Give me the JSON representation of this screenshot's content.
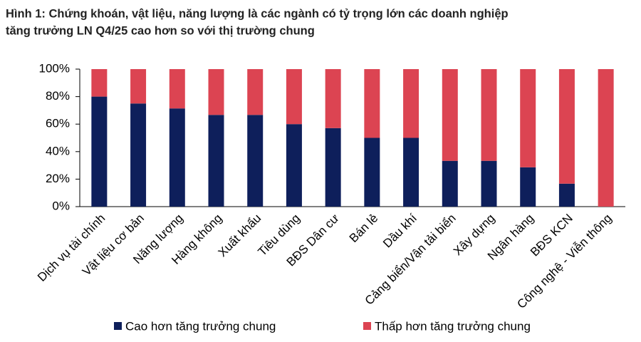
{
  "chart_data": {
    "type": "stacked_bar",
    "title": [
      "Hình 1: Chứng khoán, vật liệu, năng lượng là các ngành có tỷ trọng lớn các doanh nghiệp",
      "tăng trưởng LN Q4/25 cao hơn so với thị trường chung"
    ],
    "categories": [
      "Dịch vụ tài chính",
      "Vật liệu cơ bản",
      "Năng lượng",
      "Hàng không",
      "Xuất khẩu",
      "Tiêu dùng",
      "BĐS Dân cư",
      "Bán lẻ",
      "Dầu khí",
      "Cảng biển/Vận tải biển",
      "Xây dựng",
      "Ngân hàng",
      "BĐS KCN",
      "Công nghệ - Viễn thông"
    ],
    "series": [
      {
        "name": "Cao hơn tăng trưởng chung",
        "color": "#0e1f5b",
        "values": [
          80,
          75,
          71.4,
          66.7,
          66.7,
          60,
          57.1,
          50,
          50,
          33.3,
          33.3,
          28.6,
          16.7,
          0
        ]
      },
      {
        "name": "Thấp hơn tăng trưởng chung",
        "color": "#dc4452",
        "values": [
          20,
          25,
          28.6,
          33.3,
          33.3,
          40,
          42.9,
          50,
          50,
          66.7,
          66.7,
          71.4,
          83.3,
          100
        ]
      }
    ],
    "ylim": [
      0,
      100
    ],
    "yticks": [
      {
        "value": 0,
        "label": "0%"
      },
      {
        "value": 20,
        "label": "20%"
      },
      {
        "value": 40,
        "label": "40%"
      },
      {
        "value": 60,
        "label": "60%"
      },
      {
        "value": 80,
        "label": "80%"
      },
      {
        "value": 100,
        "label": "100%"
      }
    ]
  }
}
